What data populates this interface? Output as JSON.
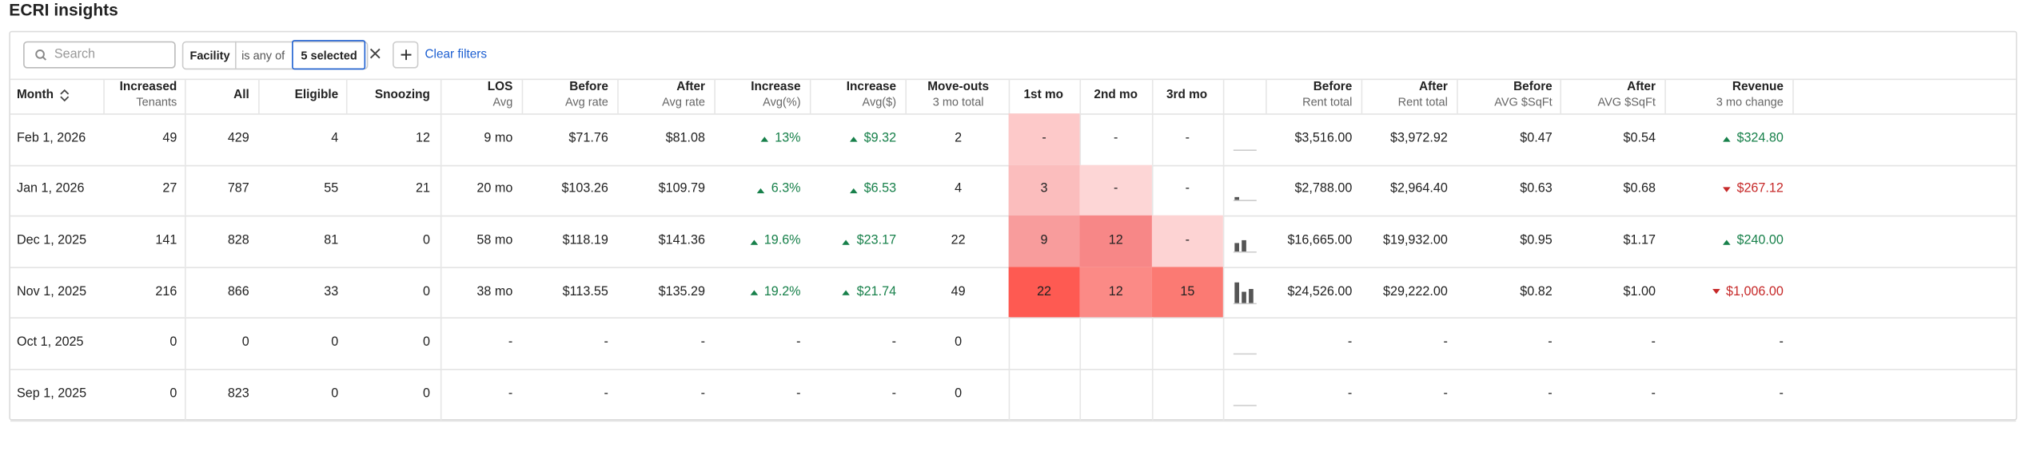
{
  "header": {
    "title": "ECRI insights"
  },
  "filters": {
    "search_placeholder": "Search",
    "field": "Facility",
    "operator": "is any of",
    "value": "5 selected",
    "clear": "Clear filters"
  },
  "table": {
    "columns": [
      {
        "title": "Month"
      },
      {
        "title": "Increased",
        "sub": "Tenants"
      },
      {
        "title": "All"
      },
      {
        "title": "Eligible"
      },
      {
        "title": "Snoozing"
      },
      {
        "title": "LOS",
        "sub": "Avg"
      },
      {
        "title": "Before",
        "sub": "Avg rate"
      },
      {
        "title": "After",
        "sub": "Avg rate"
      },
      {
        "title": "Increase",
        "sub": "Avg(%)"
      },
      {
        "title": "Increase",
        "sub": "Avg($)"
      },
      {
        "title": "Move-outs",
        "sub": "3 mo total"
      },
      {
        "title": "1st mo"
      },
      {
        "title": "2nd mo"
      },
      {
        "title": "3rd mo"
      },
      {
        "title": "Before",
        "sub": "Rent total"
      },
      {
        "title": "After",
        "sub": "Rent total"
      },
      {
        "title": "Before",
        "sub": "AVG $SqFt"
      },
      {
        "title": "After",
        "sub": "AVG $SqFt"
      },
      {
        "title": "Revenue",
        "sub": "3 mo change"
      }
    ],
    "rows": [
      {
        "cells": [
          "Feb 1, 2026",
          "49",
          "429",
          "4",
          "12",
          "9 mo",
          "$71.76",
          "$81.08",
          "13%",
          "$9.32",
          "2",
          "$3,516.00",
          "$3,972.92",
          "$0.47",
          "$0.54",
          "$324.80"
        ],
        "change_dir": "up",
        "revenue_dir": "up",
        "heat": [
          "-",
          "-",
          "-"
        ],
        "heat_colors": [
          "#fdc9c9",
          null,
          null
        ]
      },
      {
        "cells": [
          "Jan 1, 2026",
          "27",
          "787",
          "55",
          "21",
          "20 mo",
          "$103.26",
          "$109.79",
          "6.3%",
          "$6.53",
          "4",
          "$2,788.00",
          "$2,964.40",
          "$0.63",
          "$0.68",
          "$267.12"
        ],
        "change_dir": "up",
        "revenue_dir": "down",
        "heat": [
          3,
          "-",
          "-"
        ],
        "heat_colors": [
          "#fbbdbd",
          "#fdd6d6",
          null
        ]
      },
      {
        "cells": [
          "Dec 1, 2025",
          "141",
          "828",
          "81",
          "0",
          "58 mo",
          "$118.19",
          "$141.36",
          "19.6%",
          "$23.17",
          "22",
          "$16,665.00",
          "$19,932.00",
          "$0.95",
          "$1.17",
          "$240.00"
        ],
        "change_dir": "up",
        "revenue_dir": "up",
        "heat": [
          9,
          12,
          "-"
        ],
        "heat_colors": [
          "#f89c9c",
          "#f78787",
          "#fdd3d3"
        ]
      },
      {
        "cells": [
          "Nov 1, 2025",
          "216",
          "866",
          "33",
          "0",
          "38 mo",
          "$113.55",
          "$135.29",
          "19.2%",
          "$21.74",
          "49",
          "$24,526.00",
          "$29,222.00",
          "$0.82",
          "$1.00",
          "$1,006.00"
        ],
        "change_dir": "up",
        "revenue_dir": "down",
        "heat": [
          22,
          12,
          15
        ],
        "heat_colors": [
          "#fe5a52",
          "#fb8a86",
          "#fb7a73"
        ]
      },
      {
        "cells": [
          "Oct 1, 2025",
          "0",
          "0",
          "0",
          "0",
          "-",
          "-",
          "-",
          "-",
          "-",
          "0",
          "-",
          "-",
          "-",
          "-",
          "-"
        ],
        "change_dir": null,
        "revenue_dir": null,
        "heat": [
          null,
          null,
          null
        ],
        "heat_colors": [
          null,
          null,
          null
        ]
      },
      {
        "cells": [
          "Sep 1, 2025",
          "0",
          "823",
          "0",
          "0",
          "-",
          "-",
          "-",
          "-",
          "-",
          "0",
          "-",
          "-",
          "-",
          "-",
          "-"
        ],
        "change_dir": null,
        "revenue_dir": null,
        "heat": [
          null,
          null,
          null
        ],
        "heat_colors": [
          null,
          null,
          null
        ]
      }
    ]
  }
}
